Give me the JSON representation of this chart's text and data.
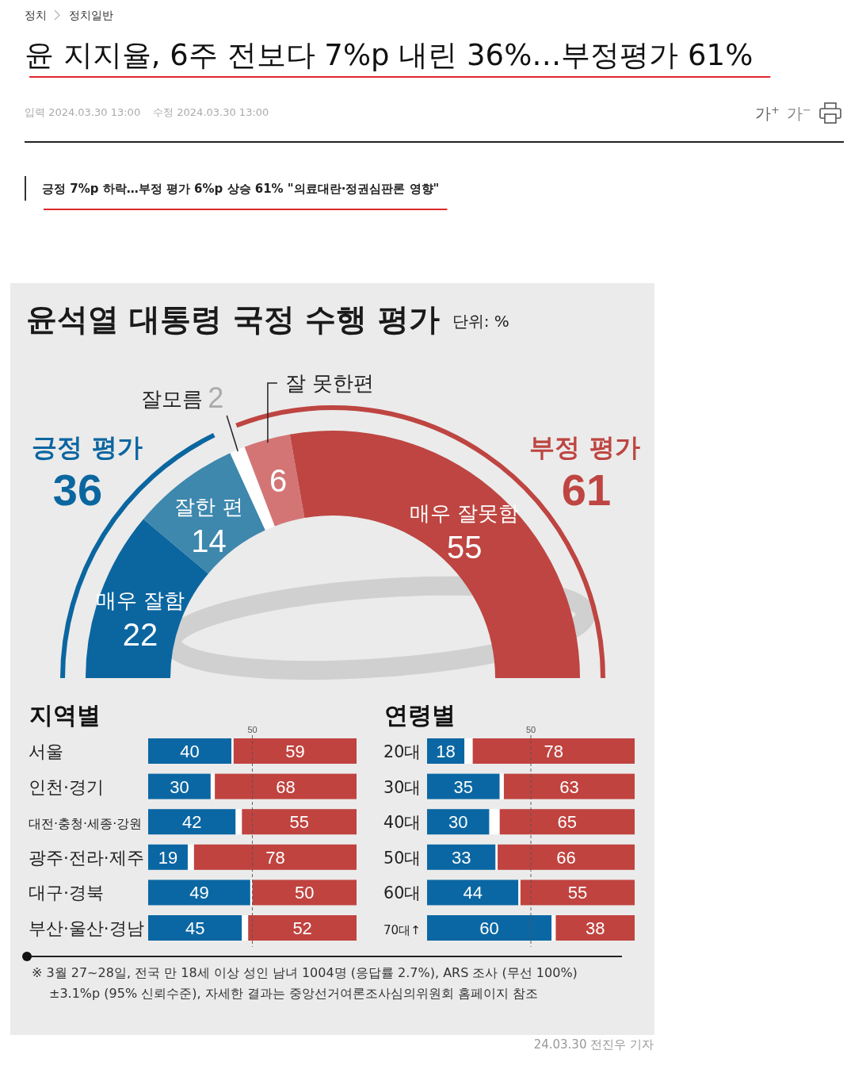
{
  "chart_data": [
    {
      "type": "other",
      "title": "윤 지지율, 6주 전보다 7%p 내린 36%…부정평가 61%",
      "subtitle": "긍정 7%p 하락…부정 평가 6%p 상승 61% \"의료대란·정권심판론 영향\"",
      "annotations": [
        "정치",
        "정치일반",
        "입력 2024.03.30 13:00",
        "수정 2024.03.30 13:00",
        "가$^{+}$",
        "가$^{−}$"
      ]
    },
    {
      "type": "donut",
      "title": "윤석열 대통령 국정 수행 평가",
      "subtitle": "단위: %",
      "categories": [
        "매우 잘함",
        "잘한 편",
        "잘모름",
        "잘 못한편",
        "매우 잘못함"
      ],
      "values": [
        22,
        14,
        2,
        6,
        55
      ],
      "colors": [
        "#0b66a0",
        "#3e87ad",
        "#ffffff",
        "#d47575",
        "#be4541"
      ],
      "data_labels": true,
      "annotations": [
        "긍정 평가",
        "36",
        "부정 평가",
        "61",
        "※ 3월 27~28일, 전국 만 18세 이상 성인 남녀 1004명 (응답률 2.7%), ARS 조사 (무선 100%)",
        "±3.1%p (95% 신뢰수준), 자세한 결과는 중앙선거여론조사심의위원회 홈페이지 참조",
        "24.03.30 전진우 기자"
      ]
    },
    {
      "type": "bar",
      "title": "지역별",
      "orientation": "horizontal",
      "stacked": true,
      "categories": [
        "서울",
        "인천·경기",
        "대전·충청·세종·강원",
        "광주·전라·제주",
        "대구·경북",
        "부산·울산·경남"
      ],
      "series": [
        {
          "color": "#0b67a3",
          "values": [
            40,
            30,
            42,
            19,
            49,
            45
          ],
          "value_labels": [
            "40",
            "30",
            "42",
            "19",
            "49",
            "45"
          ]
        },
        {
          "color": "#ffffff",
          "values": [
            1,
            2,
            3,
            3,
            1,
            3
          ]
        },
        {
          "color": "#c0433f",
          "values": [
            59,
            68,
            55,
            78,
            50,
            52
          ],
          "value_labels": [
            "59",
            "68",
            "55",
            "78",
            "50",
            "52"
          ]
        }
      ],
      "xlim": [
        0,
        100
      ],
      "ref_lines": [
        {
          "axis": "x",
          "value": 50,
          "label": "50",
          "line_style": "dashed",
          "color": "#555555"
        }
      ],
      "tick_labels": "y"
    },
    {
      "type": "bar",
      "title": "연령별",
      "orientation": "horizontal",
      "stacked": true,
      "categories": [
        "20대",
        "30대",
        "40대",
        "50대",
        "60대",
        "70대↑"
      ],
      "series": [
        {
          "color": "#0b67a3",
          "values": [
            18,
            35,
            30,
            33,
            44,
            60
          ],
          "value_labels": [
            "18",
            "35",
            "30",
            "33",
            "44",
            "60"
          ]
        },
        {
          "color": "#ffffff",
          "values": [
            4,
            2,
            5,
            1,
            1,
            2
          ]
        },
        {
          "color": "#c0433f",
          "values": [
            78,
            63,
            65,
            66,
            55,
            38
          ],
          "value_labels": [
            "78",
            "63",
            "65",
            "66",
            "55",
            "38"
          ]
        }
      ],
      "xlim": [
        0,
        100
      ],
      "ref_lines": [
        {
          "axis": "x",
          "value": 50,
          "label": "50",
          "line_style": "dashed",
          "color": "#555555"
        }
      ],
      "tick_labels": "y"
    }
  ]
}
